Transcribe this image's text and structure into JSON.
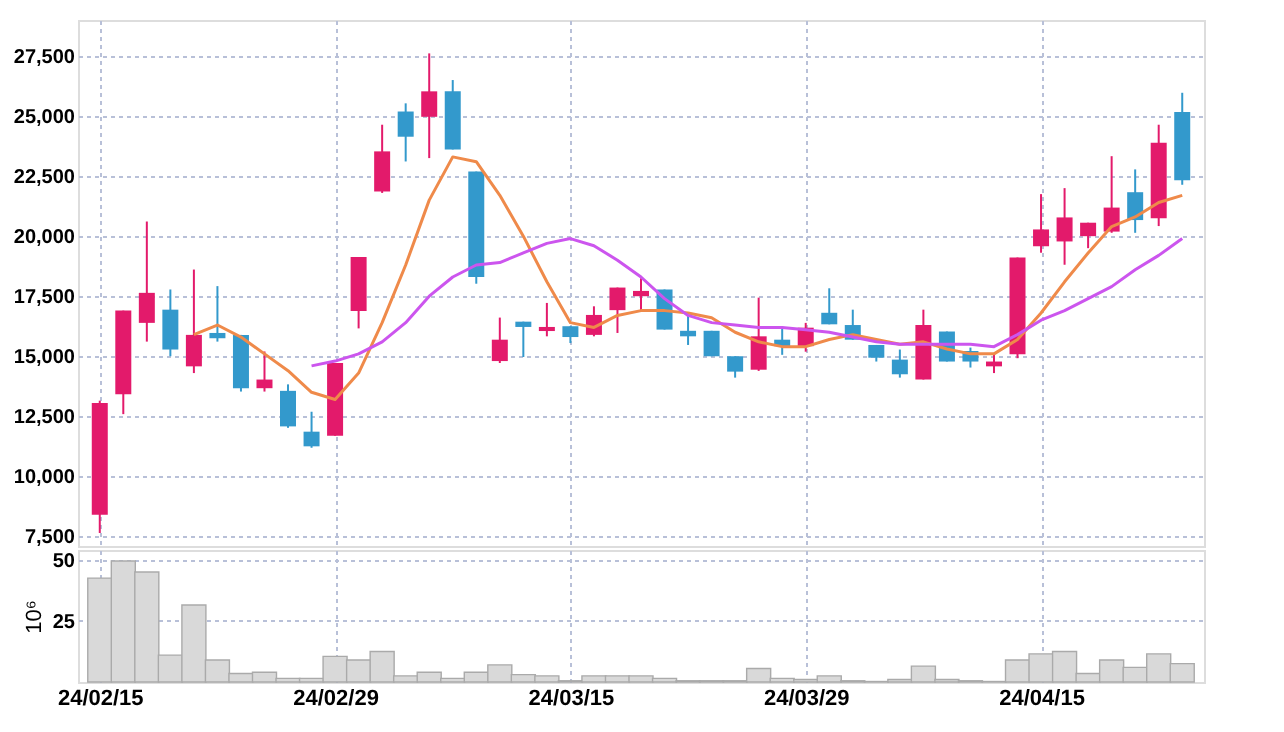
{
  "chart_data": [
    {
      "type": "candlestick",
      "categories": [
        null,
        null,
        null,
        null,
        null,
        null,
        null,
        null,
        null,
        null,
        null,
        null,
        null,
        null,
        null,
        null,
        null,
        null,
        null,
        null,
        null,
        null,
        null,
        null,
        null,
        null,
        null,
        null,
        null,
        null,
        null,
        null,
        null,
        null,
        null,
        null,
        null,
        null,
        null,
        null,
        null,
        null,
        null,
        null,
        null,
        null,
        null
      ],
      "ohlc": [
        [
          8400,
          13150,
          7640,
          13050
        ],
        [
          13420,
          16900,
          12590,
          16900
        ],
        [
          16390,
          20610,
          15610,
          17640
        ],
        [
          16940,
          17780,
          15000,
          15280
        ],
        [
          14580,
          18610,
          14300,
          15890
        ],
        [
          15970,
          17920,
          15610,
          15750
        ],
        [
          15890,
          15890,
          13530,
          13670
        ],
        [
          13670,
          15200,
          13530,
          14030
        ],
        [
          13560,
          13830,
          12020,
          12080
        ],
        [
          11860,
          12690,
          11190,
          11250
        ],
        [
          11690,
          14720,
          11690,
          14720
        ],
        [
          16880,
          19130,
          16160,
          19130
        ],
        [
          21860,
          24640,
          21800,
          23530
        ],
        [
          25190,
          25530,
          23110,
          24140
        ],
        [
          24970,
          27610,
          23250,
          26030
        ],
        [
          26030,
          26500,
          23610,
          23610
        ],
        [
          22690,
          22690,
          18020,
          18300
        ],
        [
          14800,
          16610,
          14720,
          15690
        ],
        [
          16440,
          16440,
          14970,
          16220
        ],
        [
          16050,
          17220,
          15830,
          16220
        ],
        [
          16250,
          16250,
          15550,
          15800
        ],
        [
          15890,
          17080,
          15830,
          16720
        ],
        [
          16920,
          17860,
          15970,
          17860
        ],
        [
          17500,
          18250,
          16890,
          17720
        ],
        [
          17780,
          17780,
          16110,
          16110
        ],
        [
          16060,
          16720,
          15470,
          15830
        ],
        [
          16060,
          16060,
          15000,
          15000
        ],
        [
          15000,
          15000,
          14110,
          14360
        ],
        [
          14440,
          17440,
          14390,
          15830
        ],
        [
          15690,
          16250,
          15060,
          15420
        ],
        [
          15420,
          16390,
          15190,
          16190
        ],
        [
          16810,
          17830,
          16330,
          16330
        ],
        [
          16300,
          16940,
          15690,
          15690
        ],
        [
          15470,
          15470,
          14780,
          14940
        ],
        [
          14860,
          15280,
          14110,
          14250
        ],
        [
          14030,
          16940,
          14030,
          16300
        ],
        [
          16030,
          16030,
          14780,
          14780
        ],
        [
          15220,
          15360,
          14530,
          14780
        ],
        [
          14580,
          15140,
          14300,
          14780
        ],
        [
          15080,
          19110,
          14920,
          19110
        ],
        [
          19580,
          21750,
          19310,
          20280
        ],
        [
          19780,
          22000,
          18810,
          20780
        ],
        [
          20000,
          20560,
          19500,
          20560
        ],
        [
          20190,
          23330,
          20140,
          21190
        ],
        [
          21830,
          22780,
          20140,
          20670
        ],
        [
          20750,
          24640,
          20420,
          23890
        ],
        [
          25170,
          25970,
          22140,
          22330
        ]
      ],
      "colors": [
        "#e31a6b",
        "#e31a6b",
        "#e31a6b",
        "#3399cc",
        "#e31a6b",
        "#3399cc",
        "#3399cc",
        "#e31a6b",
        "#3399cc",
        "#3399cc",
        "#e31a6b",
        "#e31a6b",
        "#e31a6b",
        "#3399cc",
        "#e31a6b",
        "#3399cc",
        "#3399cc",
        "#e31a6b",
        "#3399cc",
        "#e31a6b",
        "#3399cc",
        "#e31a6b",
        "#e31a6b",
        "#e31a6b",
        "#3399cc",
        "#3399cc",
        "#3399cc",
        "#3399cc",
        "#e31a6b",
        "#3399cc",
        "#e31a6b",
        "#3399cc",
        "#3399cc",
        "#3399cc",
        "#3399cc",
        "#e31a6b",
        "#3399cc",
        "#3399cc",
        "#e31a6b",
        "#e31a6b",
        "#e31a6b",
        "#e31a6b",
        "#e31a6b",
        "#e31a6b",
        "#3399cc",
        "#e31a6b",
        "#3399cc"
      ],
      "series": [
        {
          "type": "line",
          "color": "#ef8a4a",
          "values": [
            null,
            null,
            null,
            null,
            15900,
            16300,
            15800,
            15100,
            14400,
            13500,
            13200,
            14300,
            16400,
            18800,
            21500,
            23300,
            23100,
            21700,
            20000,
            18100,
            16400,
            16200,
            16700,
            16900,
            16900,
            16800,
            16600,
            16000,
            15600,
            15400,
            15400,
            15700,
            15900,
            15700,
            15500,
            15600,
            15300,
            15100,
            15100,
            15700,
            16800,
            18100,
            19300,
            20400,
            20800,
            21400,
            21700
          ]
        },
        {
          "type": "line",
          "color": "#cc55ee",
          "values": [
            null,
            null,
            null,
            null,
            null,
            null,
            null,
            null,
            null,
            14600,
            14800,
            15100,
            15600,
            16400,
            17500,
            18300,
            18800,
            18900,
            19300,
            19700,
            19900,
            19600,
            19000,
            18300,
            17400,
            16700,
            16400,
            16300,
            16200,
            16200,
            16100,
            16000,
            15800,
            15600,
            15500,
            15500,
            15500,
            15500,
            15400,
            15900,
            16500,
            16900,
            17400,
            17900,
            18600,
            19200,
            19900
          ]
        }
      ],
      "ylim": [
        7100,
        29000
      ],
      "yticks": [
        {
          "value": 7500,
          "label": "7,500"
        },
        {
          "value": 10000,
          "label": "10,000"
        },
        {
          "value": 12500,
          "label": "12,500"
        },
        {
          "value": 15000,
          "label": "15,000"
        },
        {
          "value": 17500,
          "label": "17,500"
        },
        {
          "value": 20000,
          "label": "20,000"
        },
        {
          "value": 22500,
          "label": "22,500"
        },
        {
          "value": 25000,
          "label": "25,000"
        },
        {
          "value": 27500,
          "label": "27,500"
        }
      ],
      "grid": true,
      "tick_labels": "y"
    },
    {
      "type": "bar",
      "categories": [
        "24/02/15",
        null,
        null,
        null,
        null,
        null,
        null,
        null,
        null,
        null,
        "24/02/29",
        null,
        null,
        null,
        null,
        null,
        null,
        null,
        null,
        null,
        "24/03/15",
        null,
        null,
        null,
        null,
        null,
        null,
        null,
        null,
        null,
        "24/03/29",
        null,
        null,
        null,
        null,
        null,
        null,
        null,
        null,
        null,
        "24/04/15",
        null,
        null,
        null,
        null,
        null,
        null
      ],
      "values": [
        42.5,
        49.5,
        45,
        11,
        31.5,
        9,
        3.5,
        4,
        1.5,
        1.5,
        10.5,
        9,
        12.5,
        2.5,
        4,
        1.5,
        4,
        7,
        3,
        2.5,
        0.5,
        2.5,
        2.5,
        2.5,
        1.5,
        0.5,
        0.5,
        0.5,
        5.5,
        1.5,
        1,
        2.5,
        0.5,
        0.2,
        1,
        6.5,
        1,
        0.5,
        0.2,
        9,
        11.5,
        12.5,
        3.5,
        9,
        6,
        11.5,
        7.5
      ],
      "color": "#d9d9d9",
      "ylabel": "10⁶",
      "ylim": [
        0,
        54
      ],
      "yticks": [
        25,
        50
      ],
      "grid": true
    }
  ]
}
